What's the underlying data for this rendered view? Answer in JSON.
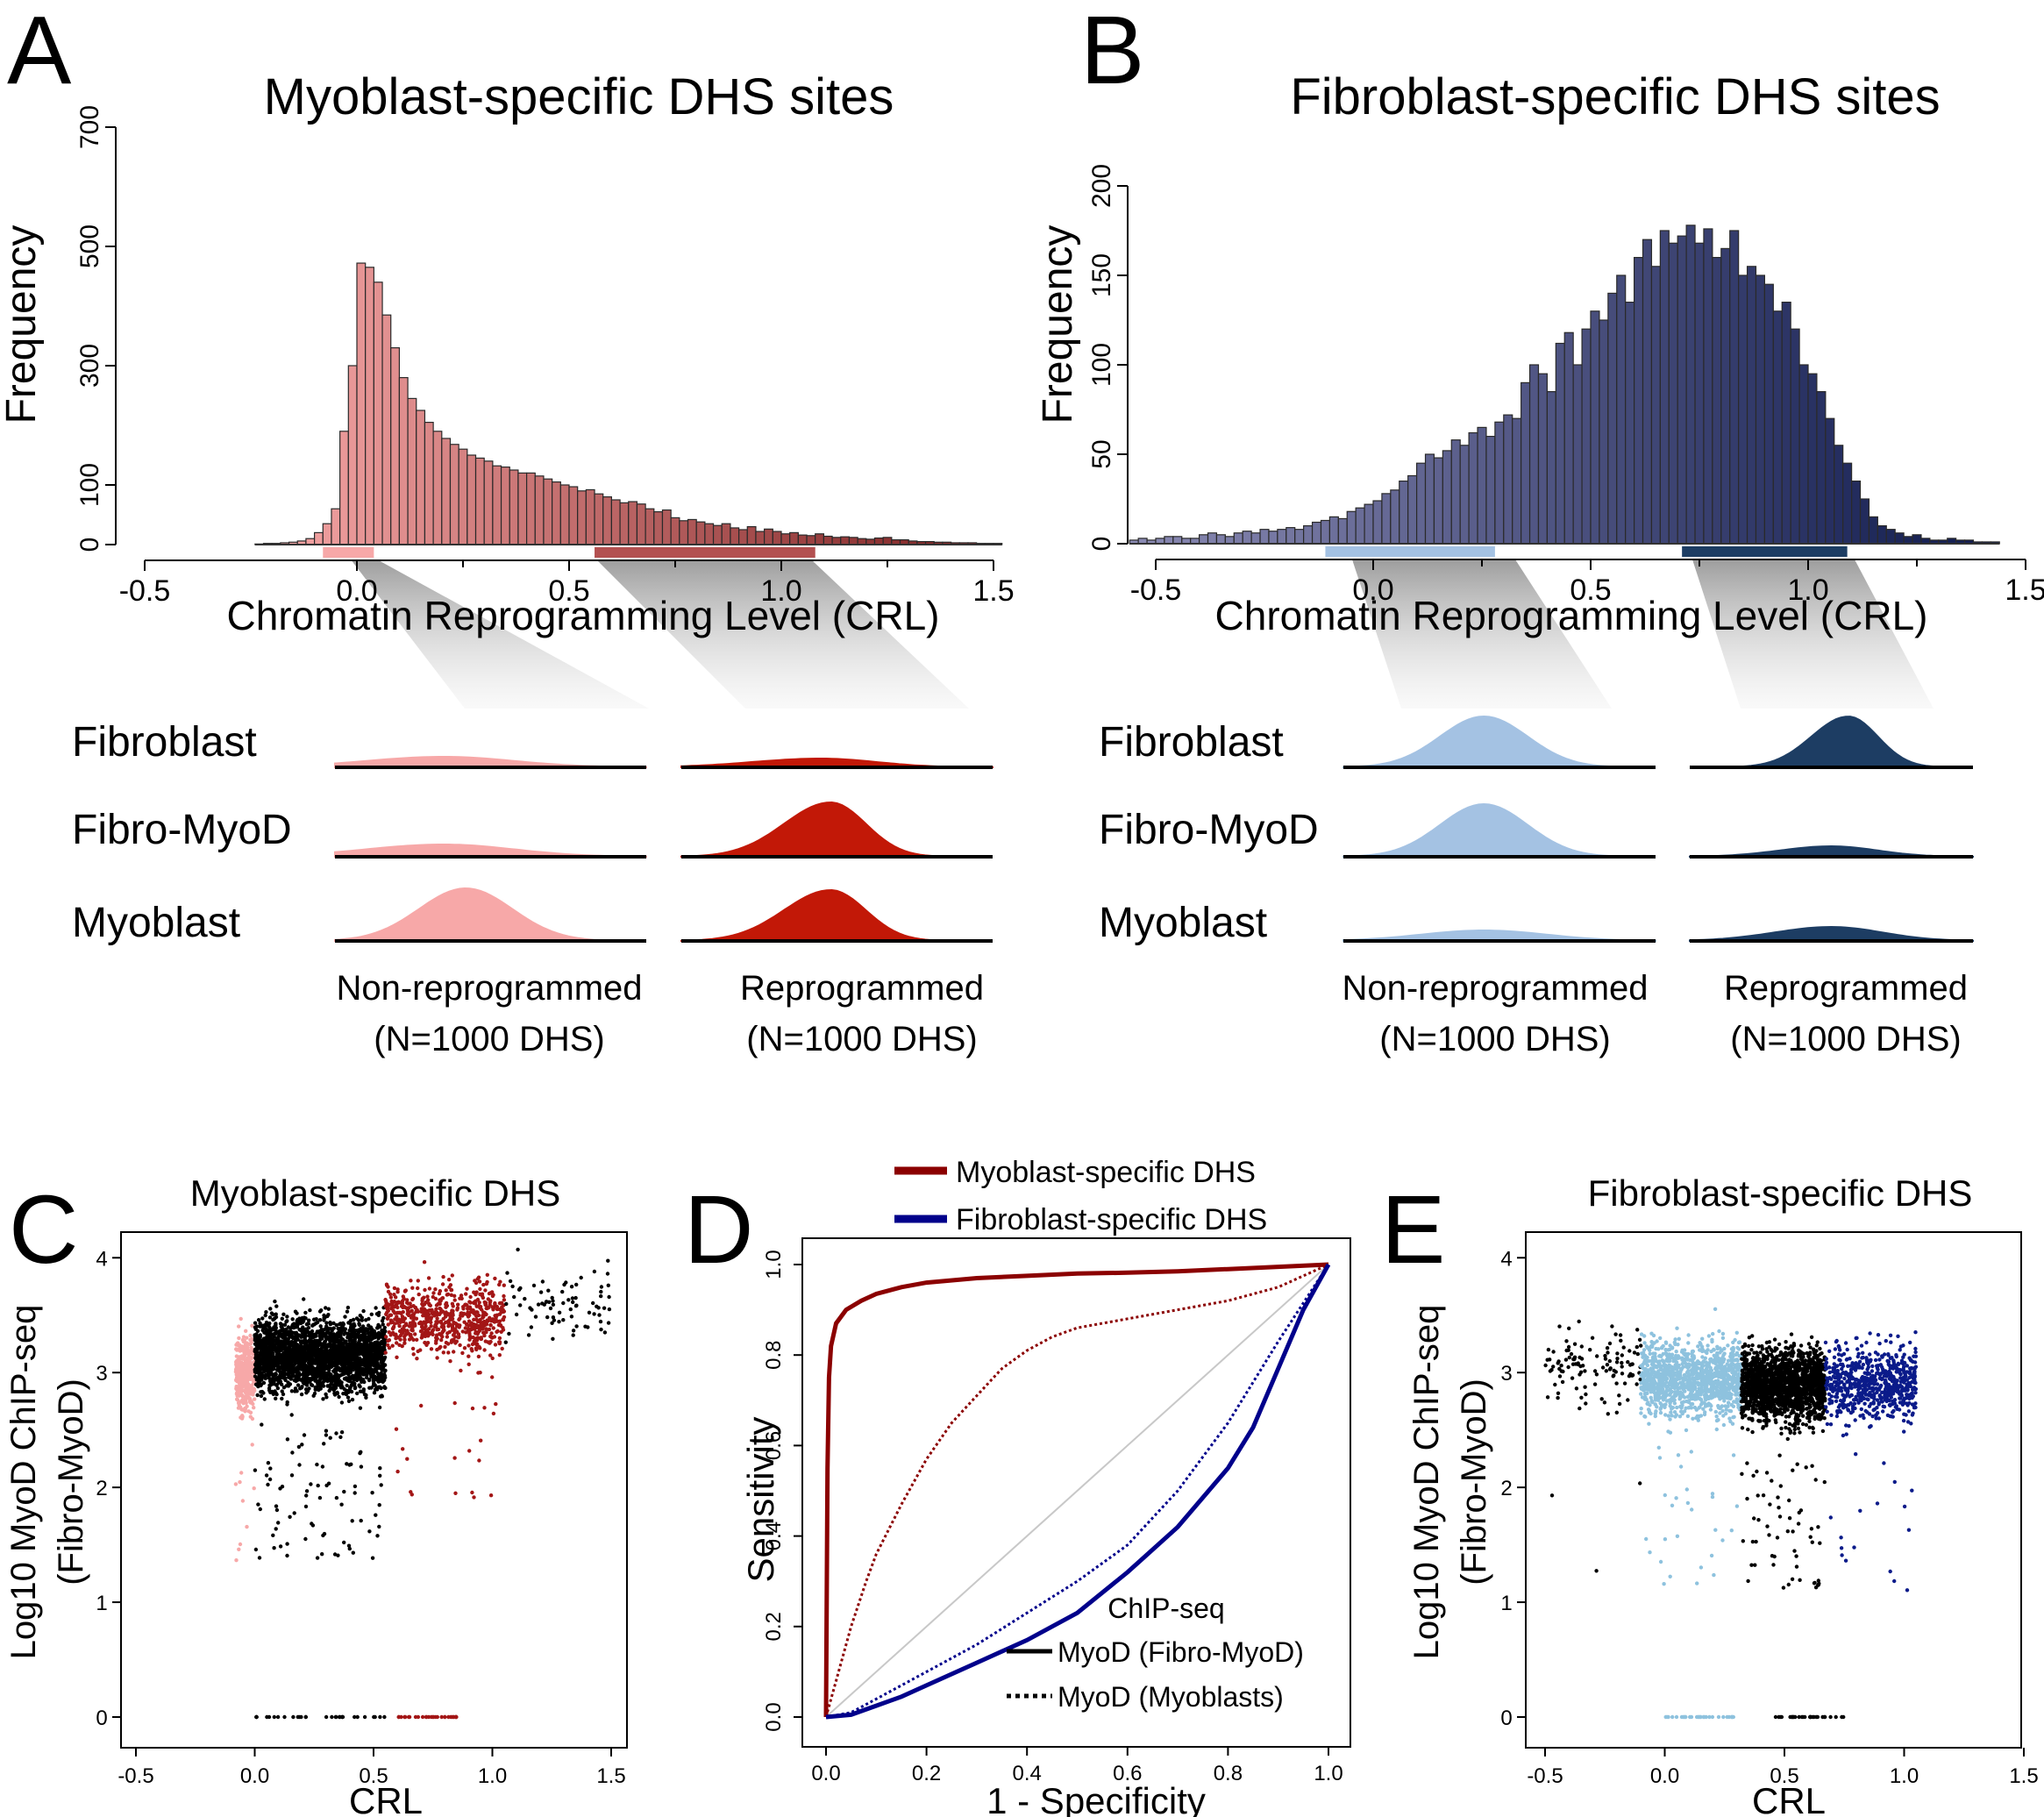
{
  "panels": {
    "A": {
      "letter": "A",
      "title": "Myoblast-specific DHS sites"
    },
    "B": {
      "letter": "B",
      "title": "Fibroblast-specific DHS sites"
    },
    "C": {
      "letter": "C",
      "title": "Myoblast-specific DHS"
    },
    "D": {
      "letter": "D"
    },
    "E": {
      "letter": "E",
      "title": "Fibroblast-specific DHS"
    }
  },
  "density_rows": [
    "Fibroblast",
    "Fibro-MyoD",
    "Myoblast"
  ],
  "density_groups": [
    "Non-reprogrammed",
    "Reprogrammed"
  ],
  "density_n": "(N=1000 DHS)",
  "colors": {
    "myoblast_light": "#f7a8a8",
    "myoblast_dark": "#c21807",
    "fibroblast_light": "#a4c2e3",
    "fibroblast_dark": "#1d3d63",
    "roc_myoblast": "#8b0000",
    "roc_fibroblast": "#00008b"
  },
  "chart_data": [
    {
      "id": "A",
      "type": "bar",
      "title": "Myoblast-specific DHS sites",
      "xlabel": "Chromatin Reprogramming Level (CRL)",
      "ylabel": "Frequency",
      "xlim": [
        -0.5,
        1.5
      ],
      "ylim": [
        0,
        700
      ],
      "xticks": [
        "-0.5",
        "0.0",
        "0.5",
        "1.0",
        "1.5"
      ],
      "yticks": [
        "0",
        "100",
        "300",
        "500",
        "700"
      ],
      "bin_width": 0.02,
      "bin_start": -0.24,
      "values": [
        1,
        2,
        2,
        3,
        4,
        6,
        10,
        20,
        35,
        60,
        190,
        300,
        472,
        465,
        440,
        385,
        330,
        280,
        245,
        225,
        205,
        190,
        178,
        168,
        160,
        150,
        145,
        140,
        132,
        130,
        125,
        120,
        120,
        115,
        110,
        105,
        100,
        97,
        90,
        92,
        85,
        80,
        75,
        70,
        72,
        68,
        60,
        55,
        58,
        45,
        40,
        42,
        38,
        35,
        32,
        35,
        28,
        25,
        30,
        22,
        26,
        22,
        18,
        20,
        16,
        15,
        18,
        14,
        12,
        13,
        12,
        10,
        9,
        11,
        12,
        8,
        8,
        6,
        5,
        5,
        4,
        4,
        3,
        3,
        3,
        2,
        2,
        2
      ],
      "highlight": [
        {
          "name": "Non-reprogrammed",
          "range": [
            -0.08,
            0.04
          ],
          "color": "#f7a8a8"
        },
        {
          "name": "Reprogrammed",
          "range": [
            0.56,
            1.08
          ],
          "color": "#b35050"
        }
      ]
    },
    {
      "id": "B",
      "type": "bar",
      "title": "Fibroblast-specific DHS sites",
      "xlabel": "Chromatin Reprogramming Level (CRL)",
      "ylabel": "Frequency",
      "xlim": [
        -0.5,
        1.5
      ],
      "ylim": [
        0,
        200
      ],
      "xticks": [
        "-0.5",
        "0.0",
        "0.5",
        "1.0",
        "1.5"
      ],
      "yticks": [
        "0",
        "50",
        "100",
        "150",
        "200"
      ],
      "bin_width": 0.02,
      "bin_start": -0.56,
      "values": [
        2,
        3,
        2,
        3,
        4,
        4,
        3,
        3,
        5,
        6,
        5,
        4,
        6,
        7,
        6,
        8,
        7,
        8,
        9,
        8,
        10,
        12,
        13,
        15,
        14,
        18,
        20,
        22,
        24,
        28,
        30,
        35,
        38,
        45,
        50,
        48,
        52,
        58,
        55,
        62,
        65,
        60,
        68,
        72,
        70,
        90,
        100,
        95,
        85,
        112,
        118,
        100,
        120,
        130,
        125,
        140,
        150,
        135,
        160,
        170,
        155,
        175,
        168,
        172,
        178,
        168,
        176,
        160,
        165,
        175,
        150,
        155,
        150,
        145,
        130,
        135,
        120,
        100,
        95,
        85,
        70,
        55,
        45,
        35,
        25,
        15,
        10,
        8,
        6,
        4,
        5,
        3,
        2,
        2,
        3,
        2,
        2,
        1,
        1,
        1
      ],
      "highlight": [
        {
          "name": "Non-reprogrammed",
          "range": [
            -0.11,
            0.28
          ],
          "color": "#a4c2e3"
        },
        {
          "name": "Reprogrammed",
          "range": [
            0.71,
            1.09
          ],
          "color": "#1d3d63"
        }
      ]
    },
    {
      "id": "C",
      "type": "scatter",
      "title": "Myoblast-specific DHS",
      "xlabel": "CRL",
      "ylabel": "Log10 MyoD ChIP-seq (Fibro-MyoD)",
      "xlim": [
        -0.5,
        1.5
      ],
      "ylim": [
        0,
        4.3
      ],
      "xticks": [
        "-0.5",
        "0.0",
        "0.5",
        "1.0",
        "1.5"
      ],
      "yticks": [
        "0",
        "1",
        "2",
        "3",
        "4"
      ],
      "series": [
        {
          "color": "#f7a8a8",
          "crl_range": [
            -0.08,
            0.0
          ],
          "y_center": 3.0,
          "n": 380
        },
        {
          "color": "#000000",
          "crl_range": [
            0.0,
            0.55
          ],
          "y_center": 3.15,
          "n": 2600
        },
        {
          "color": "#a31616",
          "crl_range": [
            0.55,
            1.05
          ],
          "y_center": 3.45,
          "n": 700
        },
        {
          "color": "#000000",
          "crl_range": [
            1.05,
            1.5
          ],
          "y_center": 3.6,
          "n": 80
        }
      ],
      "zero_points": {
        "black": [
          0.0,
          0.55
        ],
        "red": [
          0.6,
          0.85
        ]
      }
    },
    {
      "id": "D",
      "type": "line",
      "xlabel": "1 - Specificity",
      "ylabel": "Sensitivity",
      "xlim": [
        0,
        1
      ],
      "ylim": [
        0,
        1
      ],
      "xticks": [
        "0.0",
        "0.2",
        "0.4",
        "0.6",
        "0.8",
        "1.0"
      ],
      "yticks": [
        "0.0",
        "0.2",
        "0.4",
        "0.6",
        "0.8",
        "1.0"
      ],
      "legend_top": [
        "Myoblast-specific DHS",
        "Fibroblast-specific DHS"
      ],
      "legend_bottom_title": "ChIP-seq",
      "legend_bottom": [
        "MyoD (Fibro-MyoD)",
        "MyoD (Myoblasts)"
      ],
      "series": [
        {
          "name": "Myoblast-specific DHS",
          "style": "solid",
          "color": "#8b0000",
          "x": [
            0,
            0.003,
            0.006,
            0.01,
            0.02,
            0.04,
            0.07,
            0.1,
            0.15,
            0.2,
            0.3,
            0.4,
            0.5,
            0.6,
            0.7,
            0.8,
            0.9,
            1.0
          ],
          "y": [
            0,
            0.55,
            0.75,
            0.82,
            0.87,
            0.9,
            0.92,
            0.935,
            0.95,
            0.96,
            0.97,
            0.975,
            0.98,
            0.982,
            0.985,
            0.99,
            0.995,
            1.0
          ]
        },
        {
          "name": "Myoblast-specific DHS",
          "style": "dotted",
          "color": "#8b0000",
          "x": [
            0,
            0.02,
            0.05,
            0.08,
            0.1,
            0.15,
            0.2,
            0.25,
            0.3,
            0.35,
            0.4,
            0.45,
            0.5,
            0.6,
            0.7,
            0.8,
            0.9,
            1.0
          ],
          "y": [
            0,
            0.08,
            0.2,
            0.3,
            0.36,
            0.47,
            0.57,
            0.65,
            0.71,
            0.77,
            0.81,
            0.84,
            0.86,
            0.88,
            0.9,
            0.92,
            0.95,
            1.0
          ]
        },
        {
          "name": "Fibroblast-specific DHS",
          "style": "solid",
          "color": "#00008b",
          "x": [
            0,
            0.05,
            0.1,
            0.15,
            0.2,
            0.3,
            0.4,
            0.5,
            0.6,
            0.7,
            0.8,
            0.85,
            0.9,
            0.95,
            1.0
          ],
          "y": [
            0,
            0.005,
            0.025,
            0.045,
            0.07,
            0.12,
            0.17,
            0.23,
            0.32,
            0.42,
            0.55,
            0.64,
            0.77,
            0.9,
            1.0
          ]
        },
        {
          "name": "Fibroblast-specific DHS",
          "style": "dotted",
          "color": "#00008b",
          "x": [
            0,
            0.05,
            0.1,
            0.15,
            0.2,
            0.3,
            0.4,
            0.5,
            0.6,
            0.7,
            0.8,
            0.9,
            1.0
          ],
          "y": [
            0,
            0.01,
            0.04,
            0.07,
            0.1,
            0.16,
            0.23,
            0.3,
            0.38,
            0.5,
            0.65,
            0.83,
            1.0
          ]
        }
      ]
    },
    {
      "id": "E",
      "type": "scatter",
      "title": "Fibroblast-specific DHS",
      "xlabel": "CRL",
      "ylabel": "Log10 MyoD ChIP-seq (Fibro-MyoD)",
      "xlim": [
        -0.5,
        1.5
      ],
      "ylim": [
        0,
        4.3
      ],
      "xticks": [
        "-0.5",
        "0.0",
        "0.5",
        "1.0",
        "1.5"
      ],
      "yticks": [
        "0",
        "1",
        "2",
        "3",
        "4"
      ],
      "series": [
        {
          "color": "#000000",
          "crl_range": [
            -0.5,
            -0.1
          ],
          "y_center": 3.05,
          "n": 120
        },
        {
          "color": "#8ec2de",
          "crl_range": [
            -0.1,
            0.32
          ],
          "y_center": 2.95,
          "n": 1200
        },
        {
          "color": "#000000",
          "crl_range": [
            0.32,
            0.67
          ],
          "y_center": 2.9,
          "n": 1700
        },
        {
          "color": "#0b1b8a",
          "crl_range": [
            0.67,
            1.05
          ],
          "y_center": 2.9,
          "n": 700
        }
      ],
      "zero_points": {
        "blue": [
          0.0,
          0.3
        ],
        "black": [
          0.45,
          0.75
        ]
      }
    }
  ]
}
